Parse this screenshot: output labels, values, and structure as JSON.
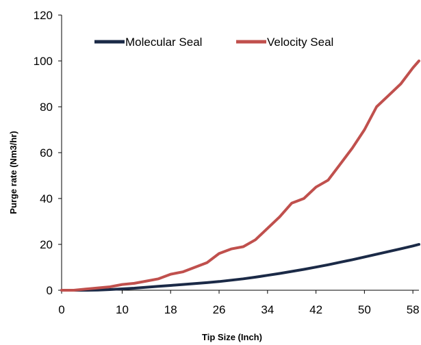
{
  "chart_data": {
    "type": "line",
    "title": "",
    "xlabel": "Tip Size (Inch)",
    "ylabel": "Purge rate (Nm3/hr)",
    "xlim": [
      0,
      59
    ],
    "ylim": [
      0,
      120
    ],
    "xticks": [
      0,
      10,
      18,
      26,
      34,
      42,
      50,
      58
    ],
    "yticks": [
      0,
      20,
      40,
      60,
      80,
      100,
      120
    ],
    "grid": false,
    "legend_position": "top",
    "x": [
      0,
      2,
      4,
      6,
      8,
      10,
      12,
      14,
      16,
      18,
      20,
      22,
      24,
      26,
      28,
      30,
      32,
      34,
      36,
      38,
      40,
      42,
      44,
      46,
      48,
      50,
      52,
      54,
      56,
      58,
      59
    ],
    "series": [
      {
        "name": "Molecular Seal",
        "color": "#1b2a47",
        "values": [
          0,
          0,
          0,
          0.1,
          0.3,
          0.6,
          0.9,
          1.3,
          1.7,
          2.1,
          2.5,
          2.9,
          3.3,
          3.8,
          4.4,
          5.0,
          5.7,
          6.5,
          7.3,
          8.2,
          9.1,
          10.1,
          11.1,
          12.2,
          13.3,
          14.5,
          15.7,
          16.9,
          18.1,
          19.3,
          20
        ]
      },
      {
        "name": "Velocity Seal",
        "color": "#c0504d",
        "values": [
          0,
          0,
          0.5,
          1,
          1.5,
          2.5,
          3,
          4,
          5,
          7,
          8,
          10,
          12,
          16,
          18,
          19,
          22,
          27,
          32,
          38,
          40,
          45,
          48,
          55,
          62,
          70,
          80,
          85,
          90,
          97,
          100
        ]
      }
    ]
  }
}
